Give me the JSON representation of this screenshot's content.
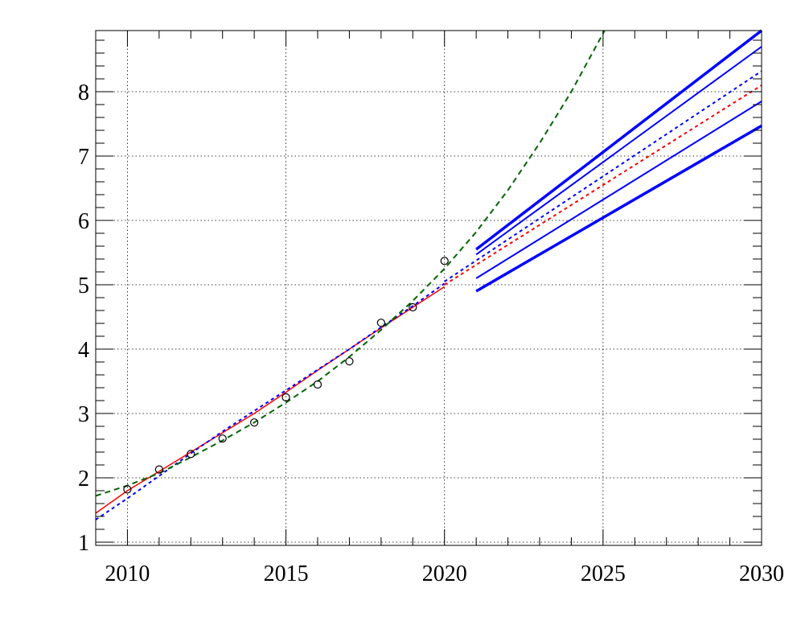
{
  "chart_data": {
    "type": "line",
    "title": "",
    "xlabel": "",
    "ylabel": "",
    "xlim": [
      2009,
      2030
    ],
    "ylim": [
      0.95,
      8.95
    ],
    "grid": true,
    "x_ticks": [
      2010,
      2015,
      2020,
      2025,
      2030
    ],
    "x_tick_labels": [
      "2010",
      "2015",
      "2020",
      "2025",
      "2030"
    ],
    "y_ticks": [
      1,
      2,
      3,
      4,
      5,
      6,
      7,
      8
    ],
    "y_tick_labels": [
      "1",
      "2",
      "3",
      "4",
      "5",
      "6",
      "7",
      "8"
    ],
    "colors": {
      "data_points": "#000000",
      "red_fit": "#ff0000",
      "blue_dotted": "#0000ff",
      "green_dashed": "#006400",
      "bands": "#0000ff"
    },
    "observed": {
      "marker": "open-circle",
      "x": [
        2010,
        2011,
        2012,
        2013,
        2014,
        2015,
        2016,
        2017,
        2018,
        2019,
        2020
      ],
      "y": [
        1.82,
        2.13,
        2.37,
        2.61,
        2.86,
        3.25,
        3.45,
        3.81,
        4.41,
        4.65,
        5.37
      ]
    },
    "series": [
      {
        "style": "solid",
        "color": "#ff0000",
        "width": 1.5,
        "x": [
          2009,
          2010,
          2011,
          2012,
          2013,
          2014,
          2015,
          2016,
          2017,
          2018,
          2019,
          2020
        ],
        "y": [
          1.45,
          1.8,
          2.1,
          2.4,
          2.7,
          3.0,
          3.33,
          3.67,
          4.0,
          4.33,
          4.65,
          4.97
        ]
      },
      {
        "style": "dotted",
        "color": "#0000ff",
        "width": 2,
        "x": [
          2009,
          2010,
          2011,
          2012,
          2013,
          2014,
          2015,
          2016,
          2017,
          2018,
          2019,
          2020
        ],
        "y": [
          1.35,
          1.68,
          2.03,
          2.38,
          2.72,
          3.04,
          3.36,
          3.68,
          4.0,
          4.34,
          4.67,
          5.02
        ]
      },
      {
        "style": "dashed",
        "color": "#006400",
        "width": 2,
        "x": [
          2009,
          2010,
          2011,
          2012,
          2013,
          2014,
          2015,
          2016,
          2017,
          2018,
          2019,
          2020,
          2021,
          2022,
          2023,
          2024,
          2025.05
        ],
        "y": [
          1.72,
          1.88,
          2.07,
          2.32,
          2.58,
          2.86,
          3.17,
          3.5,
          3.88,
          4.3,
          4.75,
          5.25,
          5.82,
          6.47,
          7.2,
          8.0,
          8.95
        ]
      },
      {
        "style": "dotted",
        "color": "#ff0000",
        "width": 2,
        "x": [
          2020,
          2030
        ],
        "y": [
          5.0,
          8.1
        ]
      },
      {
        "style": "dotted",
        "color": "#0000ff",
        "width": 2,
        "x": [
          2020,
          2030
        ],
        "y": [
          5.05,
          8.32
        ]
      },
      {
        "style": "solid",
        "color": "#0000ff",
        "width": 3.5,
        "x": [
          2021,
          2030
        ],
        "y": [
          5.55,
          8.95
        ]
      },
      {
        "style": "solid",
        "color": "#0000ff",
        "width": 2,
        "x": [
          2021,
          2030
        ],
        "y": [
          5.47,
          8.7
        ]
      },
      {
        "style": "solid",
        "color": "#0000ff",
        "width": 2,
        "x": [
          2021,
          2030
        ],
        "y": [
          5.1,
          7.85
        ]
      },
      {
        "style": "solid",
        "color": "#0000ff",
        "width": 3.5,
        "x": [
          2021,
          2030
        ],
        "y": [
          4.9,
          7.47
        ]
      }
    ]
  }
}
